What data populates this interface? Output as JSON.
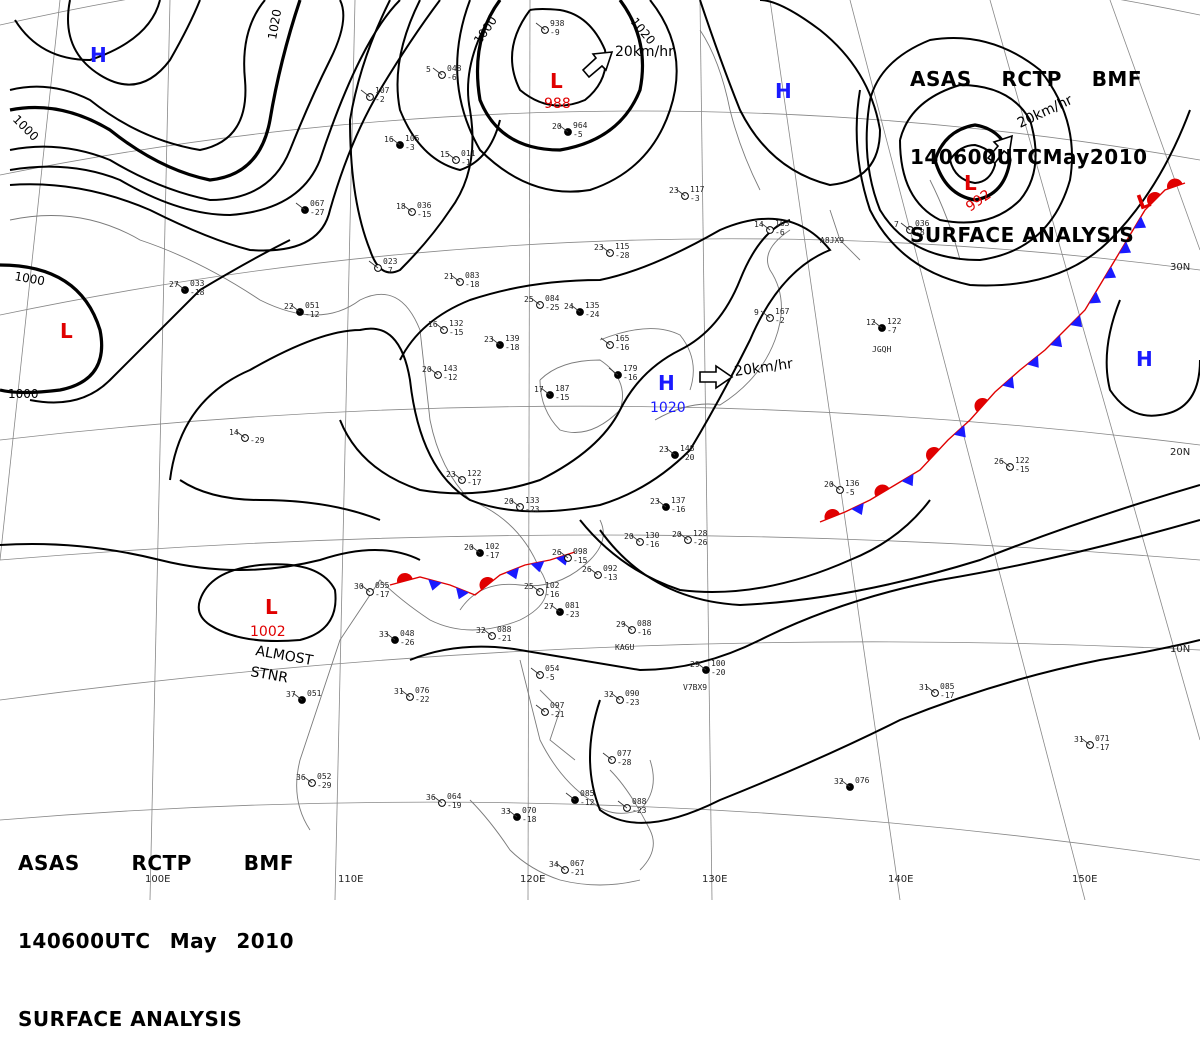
{
  "title": {
    "line1": [
      "ASAS",
      "RCTP",
      "BMF"
    ],
    "line2": [
      "140600UTC",
      "May",
      "2010"
    ],
    "line3": "SURFACE ANALYSIS"
  },
  "colors": {
    "low": "#e00000",
    "high": "#1a1aff",
    "isobar": "#000000",
    "warm_front": "#e00000",
    "cold_front": "#1a1aff",
    "grid": "#888888",
    "coast": "#7a7a7a"
  },
  "longitude_labels": [
    "100E",
    "110E",
    "120E",
    "130E",
    "140E",
    "150E"
  ],
  "latitude_labels": [
    "30N",
    "20N",
    "10N"
  ],
  "pressure_centers": [
    {
      "type": "H",
      "value": ""
    },
    {
      "type": "H",
      "value": ""
    },
    {
      "type": "H",
      "value": "1020"
    },
    {
      "type": "H",
      "value": ""
    },
    {
      "type": "L",
      "value": "988"
    },
    {
      "type": "L",
      "value": "992"
    },
    {
      "type": "L",
      "value": "1002"
    },
    {
      "type": "L",
      "value": ""
    },
    {
      "type": "L",
      "value": ""
    }
  ],
  "isobar_labels": [
    "1020",
    "1000",
    "1020",
    "1000",
    "1000",
    "1000"
  ],
  "motion_vectors": [
    "20km/hr",
    "20km/hr",
    "20km/hr"
  ],
  "notes": [
    "ALMOST",
    "STNR"
  ],
  "ship_ids": [
    "A8JX9",
    "JGQH",
    "KAGU",
    "V7BX9"
  ],
  "station_obs": [
    {
      "t": "20",
      "p": "964",
      "d": "-5"
    },
    {
      "t": "15",
      "p": "011",
      "d": "-1"
    },
    {
      "t": "18",
      "p": "036",
      "d": "-15"
    },
    {
      "t": "22",
      "p": "051",
      "d": "-12"
    },
    {
      "t": "21",
      "p": "083",
      "d": "-18"
    },
    {
      "t": "16",
      "p": "132",
      "d": "-15"
    },
    {
      "t": "23",
      "p": "139",
      "d": "-18"
    },
    {
      "t": "20",
      "p": "143",
      "d": "-12"
    },
    {
      "t": "25",
      "p": "084",
      "d": "-25"
    },
    {
      "t": "24",
      "p": "135",
      "d": "-24"
    },
    {
      "t": "23",
      "p": "115",
      "d": "-28"
    },
    {
      "t": "23",
      "p": "117",
      "d": "-3"
    },
    {
      "t": "17",
      "p": "187",
      "d": "-15"
    },
    {
      "t": "23",
      "p": "122",
      "d": "-17"
    },
    {
      "t": "20",
      "p": "133",
      "d": "-23"
    },
    {
      "t": "23",
      "p": "137",
      "d": "-16"
    },
    {
      "t": "20",
      "p": "130",
      "d": "-16"
    },
    {
      "t": "20",
      "p": "128",
      "d": "-26"
    },
    {
      "t": "20",
      "p": "102",
      "d": "-17"
    },
    {
      "t": "26",
      "p": "092",
      "d": "-13"
    },
    {
      "t": "25",
      "p": "102",
      "d": "-16"
    },
    {
      "t": "27",
      "p": "081",
      "d": "-23"
    },
    {
      "t": "29",
      "p": "088",
      "d": "-16"
    },
    {
      "t": "32",
      "p": "088",
      "d": "-21"
    },
    {
      "t": "33",
      "p": "048",
      "d": "-26"
    },
    {
      "t": "30",
      "p": "055",
      "d": "-17"
    },
    {
      "t": "31",
      "p": "076",
      "d": "-22"
    },
    {
      "t": "37",
      "p": "051",
      "d": ""
    },
    {
      "t": "36",
      "p": "052",
      "d": "-29"
    },
    {
      "t": "36",
      "p": "064",
      "d": "-19"
    },
    {
      "t": "33",
      "p": "070",
      "d": "-18"
    },
    {
      "t": "34",
      "p": "067",
      "d": "-21"
    },
    {
      "t": "32",
      "p": "090",
      "d": "-23"
    },
    {
      "t": "29",
      "p": "100",
      "d": "-20"
    },
    {
      "t": "31",
      "p": "085",
      "d": "-17"
    },
    {
      "t": "31",
      "p": "071",
      "d": "-17"
    },
    {
      "t": "32",
      "p": "076",
      "d": ""
    },
    {
      "t": "26",
      "p": "122",
      "d": "-15"
    },
    {
      "t": "20",
      "p": "136",
      "d": "-5"
    },
    {
      "t": "12",
      "p": "122",
      "d": "-7"
    },
    {
      "t": "9",
      "p": "167",
      "d": "-2"
    },
    {
      "t": "14",
      "p": "163",
      "d": "-6"
    },
    {
      "t": "23",
      "p": "148",
      "d": "-20"
    },
    {
      "t": "26",
      "p": "098",
      "d": "-15"
    },
    {
      "t": "7",
      "p": "036",
      "d": "-8"
    },
    {
      "t": "16",
      "p": "105",
      "d": "-3"
    },
    {
      "t": "5",
      "p": "048",
      "d": "-6"
    },
    {
      "t": "14",
      "p": "",
      "d": "-29"
    },
    {
      "t": "27",
      "p": "033",
      "d": "-18"
    },
    {
      "t": "",
      "p": "938",
      "d": "-9"
    },
    {
      "t": "",
      "p": "107",
      "d": "-2"
    },
    {
      "t": "",
      "p": "067",
      "d": "-27"
    },
    {
      "t": "",
      "p": "023",
      "d": "-7"
    },
    {
      "t": "",
      "p": "165",
      "d": "-16"
    },
    {
      "t": "",
      "p": "179",
      "d": "-16"
    },
    {
      "t": "",
      "p": "088",
      "d": "-23"
    },
    {
      "t": "",
      "p": "077",
      "d": "-28"
    },
    {
      "t": "",
      "p": "085",
      "d": "-12"
    },
    {
      "t": "",
      "p": "097",
      "d": "-21"
    },
    {
      "t": "",
      "p": "054",
      "d": "-5"
    },
    {
      "t": "",
      "p": "073",
      "d": ""
    }
  ]
}
